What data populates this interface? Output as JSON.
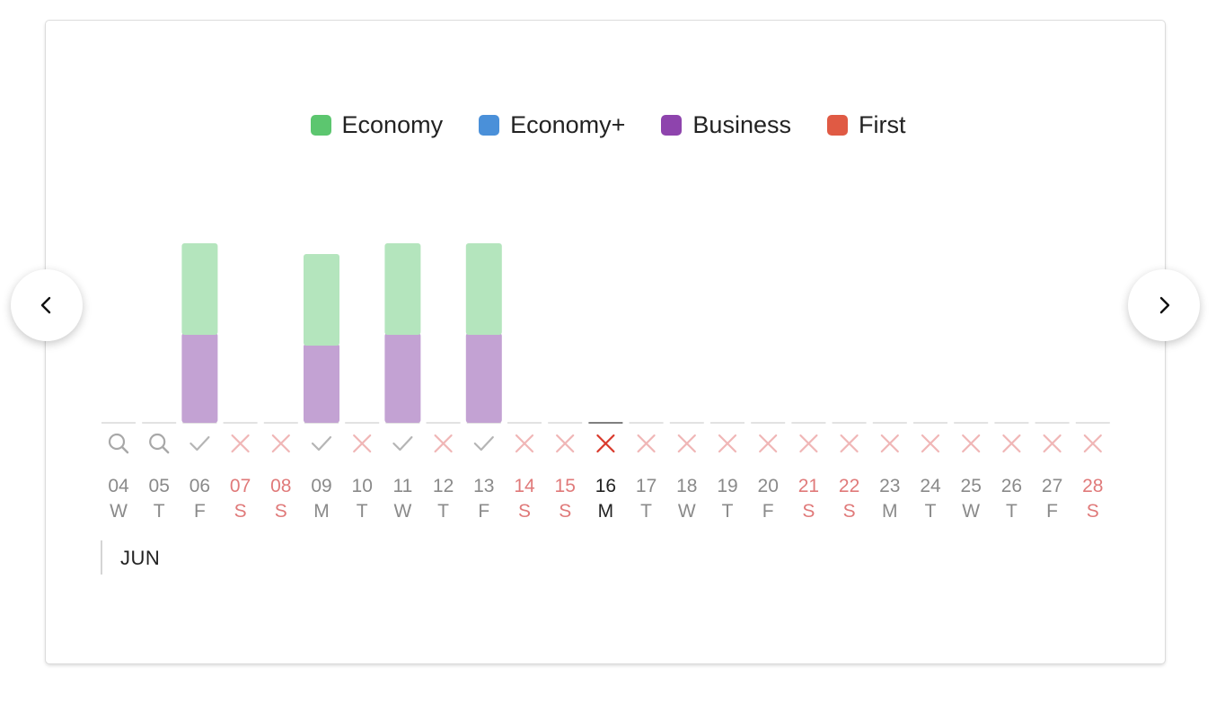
{
  "legend": [
    {
      "label": "Economy",
      "color": "#5cc66f"
    },
    {
      "label": "Economy+",
      "color": "#4a90d9"
    },
    {
      "label": "Business",
      "color": "#8e44ad"
    },
    {
      "label": "First",
      "color": "#e05a44"
    }
  ],
  "month": "JUN",
  "colors": {
    "economy_bar": "#b4e5bd",
    "business_bar": "#c3a2d3",
    "weekday_text": "#8a8a8a",
    "weekend_text": "#e07a7a",
    "today_text": "#222222",
    "check_icon": "#b5b5b5",
    "search_icon": "#a8a8a8",
    "cross_icon": "#f0b6b6",
    "cross_icon_today": "#d9392b"
  },
  "chart_data": {
    "type": "bar",
    "stacked": true,
    "categories": [
      "04",
      "05",
      "06",
      "07",
      "08",
      "09",
      "10",
      "11",
      "12",
      "13",
      "14",
      "15",
      "16",
      "17",
      "18",
      "19",
      "20",
      "21",
      "22",
      "23",
      "24",
      "25",
      "26",
      "27",
      "28"
    ],
    "weekdays": [
      "W",
      "T",
      "F",
      "S",
      "S",
      "M",
      "T",
      "W",
      "T",
      "F",
      "S",
      "S",
      "M",
      "T",
      "W",
      "T",
      "F",
      "S",
      "S",
      "M",
      "T",
      "W",
      "T",
      "F",
      "S"
    ],
    "weekend": [
      false,
      false,
      false,
      true,
      true,
      false,
      false,
      false,
      false,
      false,
      true,
      true,
      false,
      false,
      false,
      false,
      false,
      true,
      true,
      false,
      false,
      false,
      false,
      false,
      true
    ],
    "today_index": 12,
    "status_icons": [
      "search-icon",
      "search-icon",
      "check-icon",
      "cross-icon",
      "cross-icon",
      "check-icon",
      "cross-icon",
      "check-icon",
      "cross-icon",
      "check-icon",
      "cross-icon",
      "cross-icon",
      "cross-icon",
      "cross-icon",
      "cross-icon",
      "cross-icon",
      "cross-icon",
      "cross-icon",
      "cross-icon",
      "cross-icon",
      "cross-icon",
      "cross-icon",
      "cross-icon",
      "cross-icon",
      "cross-icon"
    ],
    "series": [
      {
        "name": "Economy",
        "values": [
          0,
          0,
          1,
          0,
          0,
          1,
          0,
          1,
          0,
          1,
          0,
          0,
          0,
          0,
          0,
          0,
          0,
          0,
          0,
          0,
          0,
          0,
          0,
          0,
          0
        ]
      },
      {
        "name": "Economy+",
        "values": [
          0,
          0,
          0,
          0,
          0,
          0,
          0,
          0,
          0,
          0,
          0,
          0,
          0,
          0,
          0,
          0,
          0,
          0,
          0,
          0,
          0,
          0,
          0,
          0,
          0
        ]
      },
      {
        "name": "Business",
        "values": [
          0,
          0,
          1,
          0,
          0,
          0.88,
          0,
          1,
          0,
          1,
          0,
          0,
          0,
          0,
          0,
          0,
          0,
          0,
          0,
          0,
          0,
          0,
          0,
          0,
          0
        ]
      },
      {
        "name": "First",
        "values": [
          0,
          0,
          0,
          0,
          0,
          0,
          0,
          0,
          0,
          0,
          0,
          0,
          0,
          0,
          0,
          0,
          0,
          0,
          0,
          0,
          0,
          0,
          0,
          0,
          0
        ]
      }
    ],
    "ylim": [
      0,
      2
    ],
    "grid": false,
    "legend_position": "top-center"
  }
}
